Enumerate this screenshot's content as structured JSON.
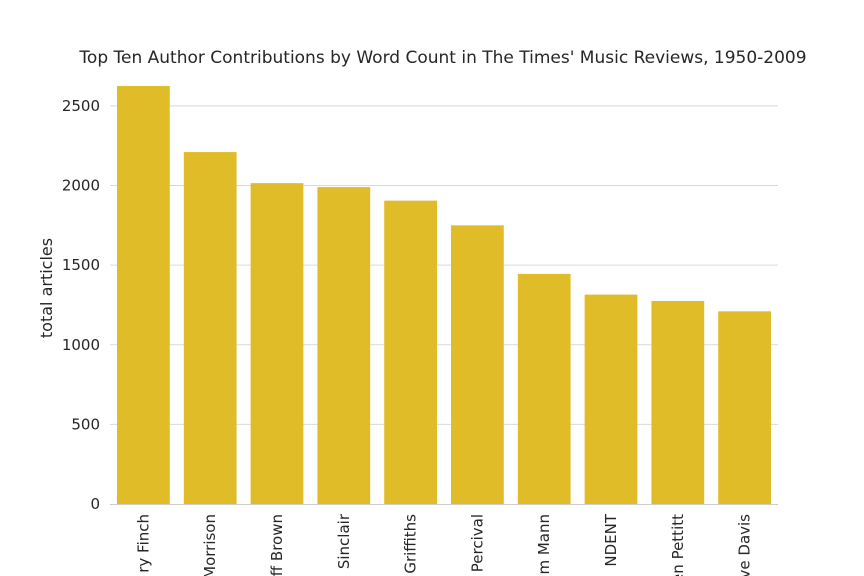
{
  "chart_data": {
    "type": "bar",
    "title": "Top Ten Author Contributions by Word Count in The Times' Music Reviews, 1950-2009",
    "xlabel": "",
    "ylabel": "total articles",
    "categories": [
      "ry Finch",
      "Morrison",
      "ff Brown",
      "Sinclair",
      "Griffiths",
      "Percival",
      "m Mann",
      "NDENT",
      "en Pettitt",
      "ve Davis"
    ],
    "values": [
      2625,
      2210,
      2015,
      1990,
      1905,
      1750,
      1445,
      1315,
      1275,
      1210
    ],
    "ylim": [
      0,
      2650
    ],
    "yticks": [
      0,
      500,
      1000,
      1500,
      2000,
      2500
    ],
    "grid": true,
    "bar_color": "#e1bc29"
  }
}
